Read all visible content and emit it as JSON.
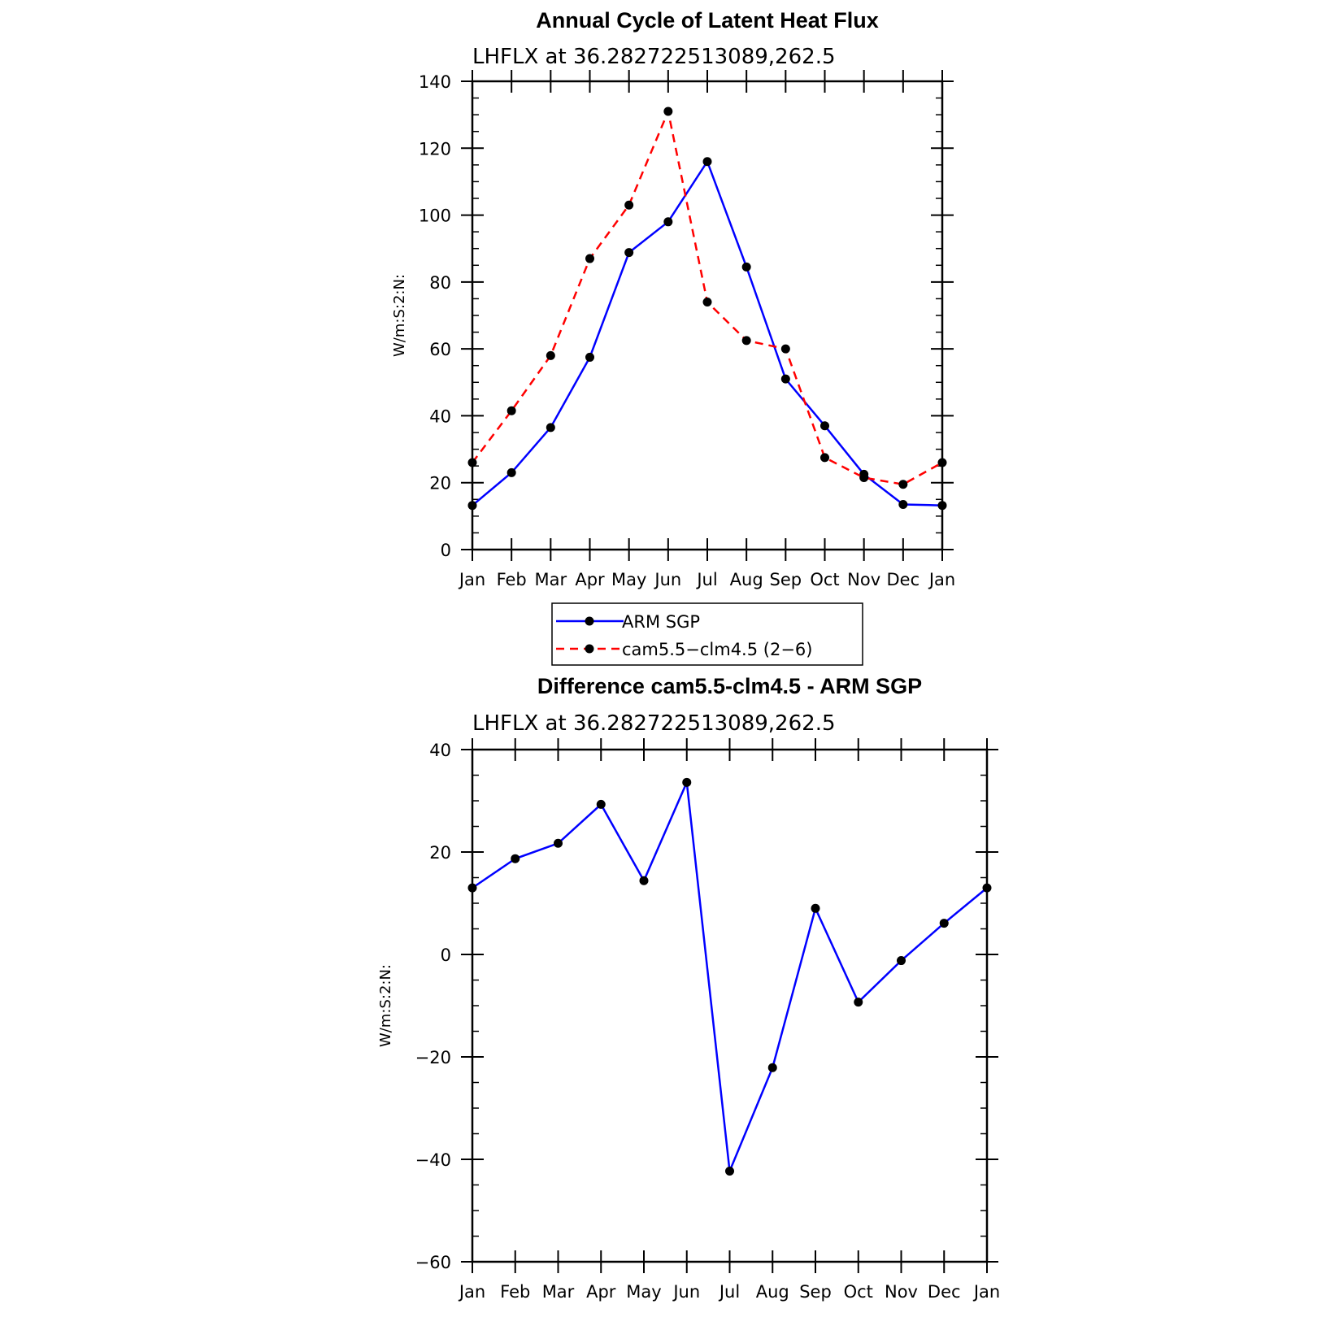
{
  "chart_data": [
    {
      "type": "line",
      "title": "Annual Cycle of Latent Heat Flux",
      "subtitle": "LHFLX at 36.282722513089,262.5",
      "ylabel": "W/m:S:2:N:",
      "xlabel": "",
      "categories": [
        "Jan",
        "Feb",
        "Mar",
        "Apr",
        "May",
        "Jun",
        "Jul",
        "Aug",
        "Sep",
        "Oct",
        "Nov",
        "Dec",
        "Jan"
      ],
      "ylim": [
        0,
        140
      ],
      "yticks": [
        0,
        20,
        40,
        60,
        80,
        100,
        120,
        140
      ],
      "series": [
        {
          "name": "ARM SGP",
          "color": "#0000ff",
          "dash": "solid",
          "values": [
            13.2,
            23.0,
            36.5,
            57.5,
            88.8,
            98.0,
            116.0,
            84.5,
            51.0,
            37.0,
            22.5,
            13.5,
            13.2
          ]
        },
        {
          "name": "cam5.5−clm4.5 (2−6)",
          "color": "#ff0000",
          "dash": "dashed",
          "values": [
            26.0,
            41.5,
            58.0,
            87.0,
            103.0,
            131.0,
            74.0,
            62.5,
            60.0,
            27.5,
            21.5,
            19.5,
            26.0
          ]
        }
      ],
      "legend": "below"
    },
    {
      "type": "line",
      "title": "Difference cam5.5-clm4.5 - ARM SGP",
      "subtitle": "LHFLX at 36.282722513089,262.5",
      "ylabel": "W/m:S:2:N:",
      "xlabel": "",
      "categories": [
        "Jan",
        "Feb",
        "Mar",
        "Apr",
        "May",
        "Jun",
        "Jul",
        "Aug",
        "Sep",
        "Oct",
        "Nov",
        "Dec",
        "Jan"
      ],
      "ylim": [
        -60,
        40
      ],
      "yticks": [
        -60,
        -40,
        -20,
        0,
        20,
        40
      ],
      "ytick_labels": [
        "−60",
        "−40",
        "−20",
        "0",
        "20",
        "40"
      ],
      "series": [
        {
          "color": "#0000ff",
          "dash": "solid",
          "values": [
            13.0,
            18.7,
            21.7,
            29.3,
            14.4,
            33.6,
            -42.3,
            -22.1,
            9.0,
            -9.3,
            -1.2,
            6.1,
            13.0
          ]
        }
      ]
    }
  ]
}
